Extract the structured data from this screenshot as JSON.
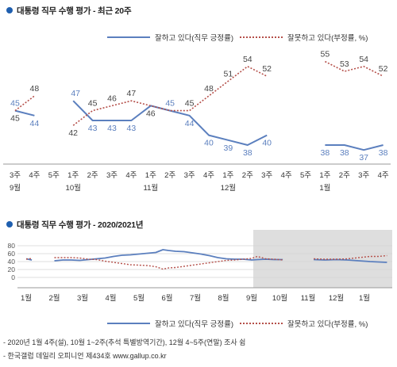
{
  "chart_data": [
    {
      "type": "line",
      "title": "대통령 직무 수행 평가 - 최근 20주",
      "x_tick_labels": [
        [
          "3주",
          "9월"
        ],
        [
          "4주",
          ""
        ],
        [
          "5주",
          ""
        ],
        [
          "1주",
          "10월"
        ],
        [
          "2주",
          ""
        ],
        [
          "3주",
          ""
        ],
        [
          "4주",
          ""
        ],
        [
          "1주",
          "11월"
        ],
        [
          "2주",
          ""
        ],
        [
          "3주",
          ""
        ],
        [
          "4주",
          ""
        ],
        [
          "1주",
          "12월"
        ],
        [
          "2주",
          ""
        ],
        [
          "3주",
          ""
        ],
        [
          "4주",
          ""
        ],
        [
          "5주",
          ""
        ],
        [
          "1주",
          "1월"
        ],
        [
          "2주",
          ""
        ],
        [
          "3주",
          ""
        ],
        [
          "4주",
          ""
        ]
      ],
      "series": [
        {
          "name": "잘하고 있다(직무 긍정률)",
          "color": "#5b7fbe",
          "style": "solid",
          "values": [
            45,
            44,
            null,
            47,
            43,
            43,
            43,
            46,
            45,
            44,
            40,
            39,
            38,
            40,
            null,
            null,
            38,
            38,
            37,
            38
          ],
          "labels": [
            "45",
            "44",
            "",
            "",
            "43",
            "43",
            "43",
            "",
            "45",
            "44",
            "40",
            "39",
            "38",
            "40",
            "",
            "",
            "38",
            "38",
            "37",
            "38"
          ]
        },
        {
          "name": "잘못하고 있다(부정률, %)",
          "color": "#b5504a",
          "style": "dotted",
          "values": [
            45,
            48,
            null,
            42,
            45,
            46,
            47,
            46,
            45,
            45,
            48,
            51,
            54,
            52,
            null,
            null,
            55,
            53,
            54,
            52
          ],
          "labels": [
            "45",
            "48",
            "",
            "42",
            "45",
            "46",
            "47",
            "46",
            "",
            "45",
            "48",
            "51",
            "54",
            "52",
            "",
            "",
            "55",
            "53",
            "54",
            "52"
          ]
        }
      ],
      "extra_label": "47",
      "grid": false
    },
    {
      "type": "line",
      "title": "대통령 직무 수행 평가 - 2020/2021년",
      "y_ticks": [
        0,
        20,
        40,
        60,
        80
      ],
      "ylim": [
        0,
        90
      ],
      "months": [
        "1월",
        "2월",
        "3월",
        "4월",
        "5월",
        "6월",
        "7월",
        "8월",
        "9월",
        "10월",
        "11월",
        "12월",
        "1월"
      ],
      "shaded_from_month_index": 8,
      "series": [
        {
          "name": "잘하고 있다(직무 긍정률)",
          "color": "#5b7fbe",
          "style": "solid",
          "segments": [
            [
              [
                0.0,
                47
              ],
              [
                0.2,
                44
              ]
            ],
            [
              [
                1.0,
                42
              ],
              [
                1.3,
                44
              ],
              [
                1.6,
                44
              ],
              [
                1.9,
                43
              ],
              [
                2.2,
                45
              ],
              [
                2.5,
                47
              ],
              [
                2.8,
                49
              ],
              [
                3.1,
                53
              ],
              [
                3.4,
                56
              ],
              [
                3.7,
                57
              ],
              [
                4.0,
                59
              ],
              [
                4.3,
                61
              ],
              [
                4.6,
                63
              ],
              [
                4.85,
                70
              ],
              [
                5.05,
                68
              ],
              [
                5.3,
                66
              ],
              [
                5.6,
                65
              ],
              [
                5.9,
                62
              ],
              [
                6.2,
                59
              ],
              [
                6.5,
                55
              ],
              [
                6.8,
                50
              ],
              [
                7.1,
                47
              ],
              [
                7.4,
                46
              ],
              [
                7.7,
                46
              ],
              [
                8.0,
                44
              ],
              [
                8.2,
                45
              ],
              [
                8.5,
                46
              ],
              [
                8.8,
                45
              ],
              [
                9.1,
                45
              ]
            ],
            [
              [
                10.2,
                45
              ],
              [
                10.6,
                44
              ],
              [
                11.0,
                45
              ],
              [
                11.4,
                44
              ],
              [
                11.8,
                42
              ],
              [
                12.2,
                40
              ],
              [
                12.5,
                39
              ],
              [
                12.8,
                38
              ]
            ],
            [
              [
                14.0,
                38
              ],
              [
                14.6,
                38
              ]
            ]
          ]
        },
        {
          "name": "잘못하고 있다(부정률, %)",
          "color": "#b5504a",
          "style": "dotted",
          "segments": [
            [
              [
                0.0,
                46
              ],
              [
                0.2,
                48
              ]
            ],
            [
              [
                1.0,
                50
              ],
              [
                1.3,
                50
              ],
              [
                1.6,
                50
              ],
              [
                1.9,
                49
              ],
              [
                2.2,
                46
              ],
              [
                2.5,
                45
              ],
              [
                2.8,
                41
              ],
              [
                3.1,
                38
              ],
              [
                3.4,
                35
              ],
              [
                3.7,
                32
              ],
              [
                4.0,
                31
              ],
              [
                4.3,
                30
              ],
              [
                4.6,
                27
              ],
              [
                4.85,
                21
              ],
              [
                5.05,
                24
              ],
              [
                5.3,
                25
              ],
              [
                5.6,
                28
              ],
              [
                5.9,
                31
              ],
              [
                6.2,
                34
              ],
              [
                6.5,
                37
              ],
              [
                6.8,
                40
              ],
              [
                7.1,
                43
              ],
              [
                7.4,
                44
              ],
              [
                7.7,
                46
              ],
              [
                8.0,
                48
              ],
              [
                8.2,
                53
              ],
              [
                8.5,
                47
              ],
              [
                8.8,
                46
              ],
              [
                9.1,
                44
              ]
            ],
            [
              [
                10.2,
                47
              ],
              [
                10.6,
                46
              ],
              [
                11.0,
                46
              ],
              [
                11.4,
                47
              ],
              [
                11.8,
                50
              ],
              [
                12.2,
                53
              ],
              [
                12.5,
                53
              ],
              [
                12.8,
                55
              ]
            ],
            [
              [
                14.0,
                55
              ],
              [
                14.6,
                54
              ]
            ]
          ]
        }
      ]
    }
  ],
  "legend": {
    "positive": "잘하고 있다(직무 긍정률)",
    "negative": "잘못하고 있다(부정률, %)"
  },
  "footnotes": [
    "- 2020년 1월 4주(설), 10월 1~2주(추석 특별방역기간), 12월 4~5주(연말) 조사 쉼",
    "- 한국갤럽 데일리 오피니언 제434호 www.gallup.co.kr"
  ],
  "colors": {
    "title_bullet": "#1f5faf",
    "shade": "#dedede"
  }
}
